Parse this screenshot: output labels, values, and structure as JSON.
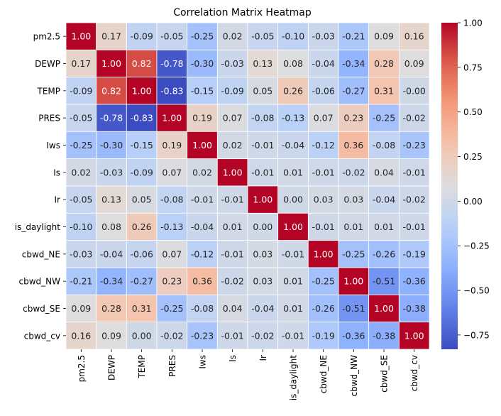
{
  "chart_data": {
    "type": "heatmap",
    "title": "Correlation Matrix Heatmap",
    "row_labels": [
      "pm2.5",
      "DEWP",
      "TEMP",
      "PRES",
      "Iws",
      "Is",
      "Ir",
      "is_daylight",
      "cbwd_NE",
      "cbwd_NW",
      "cbwd_SE",
      "cbwd_cv"
    ],
    "col_labels": [
      "pm2.5",
      "DEWP",
      "TEMP",
      "PRES",
      "Iws",
      "Is",
      "Ir",
      "is_daylight",
      "cbwd_NE",
      "cbwd_NW",
      "cbwd_SE",
      "cbwd_cv"
    ],
    "values": [
      [
        1.0,
        0.17,
        -0.09,
        -0.05,
        -0.25,
        0.02,
        -0.05,
        -0.1,
        -0.03,
        -0.21,
        0.09,
        0.16
      ],
      [
        0.17,
        1.0,
        0.82,
        -0.78,
        -0.3,
        -0.03,
        0.13,
        0.08,
        -0.04,
        -0.34,
        0.28,
        0.09
      ],
      [
        -0.09,
        0.82,
        1.0,
        -0.83,
        -0.15,
        -0.09,
        0.05,
        0.26,
        -0.06,
        -0.27,
        0.31,
        -0.0
      ],
      [
        -0.05,
        -0.78,
        -0.83,
        1.0,
        0.19,
        0.07,
        -0.08,
        -0.13,
        0.07,
        0.23,
        -0.25,
        -0.02
      ],
      [
        -0.25,
        -0.3,
        -0.15,
        0.19,
        1.0,
        0.02,
        -0.01,
        -0.04,
        -0.12,
        0.36,
        -0.08,
        -0.23
      ],
      [
        0.02,
        -0.03,
        -0.09,
        0.07,
        0.02,
        1.0,
        -0.01,
        0.01,
        -0.01,
        -0.02,
        0.04,
        -0.01
      ],
      [
        -0.05,
        0.13,
        0.05,
        -0.08,
        -0.01,
        -0.01,
        1.0,
        0.0,
        0.03,
        0.03,
        -0.04,
        -0.02
      ],
      [
        -0.1,
        0.08,
        0.26,
        -0.13,
        -0.04,
        0.01,
        0.0,
        1.0,
        -0.01,
        0.01,
        0.01,
        -0.01
      ],
      [
        -0.03,
        -0.04,
        -0.06,
        0.07,
        -0.12,
        -0.01,
        0.03,
        -0.01,
        1.0,
        -0.25,
        -0.26,
        -0.19
      ],
      [
        -0.21,
        -0.34,
        -0.27,
        0.23,
        0.36,
        -0.02,
        0.03,
        0.01,
        -0.25,
        1.0,
        -0.51,
        -0.36
      ],
      [
        0.09,
        0.28,
        0.31,
        -0.25,
        -0.08,
        0.04,
        -0.04,
        0.01,
        -0.26,
        -0.51,
        1.0,
        -0.38
      ],
      [
        0.16,
        0.09,
        -0.0,
        -0.02,
        -0.23,
        -0.01,
        -0.02,
        -0.01,
        -0.19,
        -0.36,
        -0.38,
        1.0
      ]
    ],
    "value_format": "2 decimals",
    "colormap": "coolwarm",
    "color_range": [
      -0.83,
      1.0
    ],
    "colorbar_ticks": [
      "1.00",
      "0.75",
      "0.50",
      "0.25",
      "0.00",
      "−0.25",
      "−0.50",
      "−0.75"
    ],
    "colorbar_tick_values": [
      1.0,
      0.75,
      0.5,
      0.25,
      0.0,
      -0.25,
      -0.5,
      -0.75
    ],
    "cell_border_color": "#ffffff"
  }
}
